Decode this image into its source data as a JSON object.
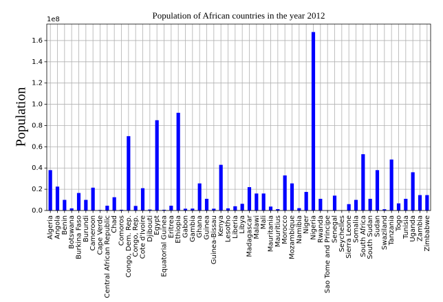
{
  "chart_data": {
    "type": "bar",
    "title": "Population of African countries in the year 2012",
    "ylabel": "Population",
    "y_offset_label": "1e8",
    "categories": [
      "Algeria",
      "Angola",
      "Benin",
      "Botswana",
      "Burkina Faso",
      "Burundi",
      "Cameroon",
      "Cape Verde",
      "Central African Republic",
      "Chad",
      "Comoros",
      "Congo, Dem. Rep.",
      "Congo, Rep.",
      "Cote d'Ivoire",
      "Djibouti",
      "Egypt",
      "Equatorial Guinea",
      "Eritrea",
      "Ethiopia",
      "Gabon",
      "Gambia",
      "Ghana",
      "Guinea",
      "Guinea-Bissau",
      "Kenya",
      "Lesotho",
      "Liberia",
      "Libya",
      "Madagascar",
      "Malawi",
      "Mali",
      "Mauritania",
      "Mauritius",
      "Morocco",
      "Mozambique",
      "Namibia",
      "Niger",
      "Nigeria",
      "Rwanda",
      "Sao Tome and Principe",
      "Senegal",
      "Seychelles",
      "Sierra Leone",
      "Somalia",
      "South Africa",
      "South Sudan",
      "Sudan",
      "Swaziland",
      "Tanzania",
      "Togo",
      "Tunisia",
      "Uganda",
      "Zambia",
      "Zimbabwe"
    ],
    "values": [
      0.38,
      0.225,
      0.1,
      0.02,
      0.165,
      0.1,
      0.215,
      0.005,
      0.045,
      0.125,
      0.007,
      0.7,
      0.043,
      0.21,
      0.009,
      0.85,
      0.007,
      0.045,
      0.92,
      0.017,
      0.018,
      0.255,
      0.11,
      0.017,
      0.43,
      0.02,
      0.04,
      0.063,
      0.22,
      0.16,
      0.16,
      0.037,
      0.013,
      0.33,
      0.255,
      0.022,
      0.175,
      1.68,
      0.11,
      0.002,
      0.14,
      0.001,
      0.06,
      0.1,
      0.53,
      0.11,
      0.38,
      0.012,
      0.48,
      0.067,
      0.11,
      0.36,
      0.145,
      0.145
    ],
    "color": "#0000ff",
    "ylim": [
      0,
      1.755
    ],
    "yticks": [
      {
        "value": 0,
        "label": "0.0"
      },
      0.2,
      0.4,
      0.6,
      0.8,
      {
        "value": 1,
        "label": "1.0"
      },
      1.2,
      1.4,
      1.6
    ],
    "grid": true
  }
}
